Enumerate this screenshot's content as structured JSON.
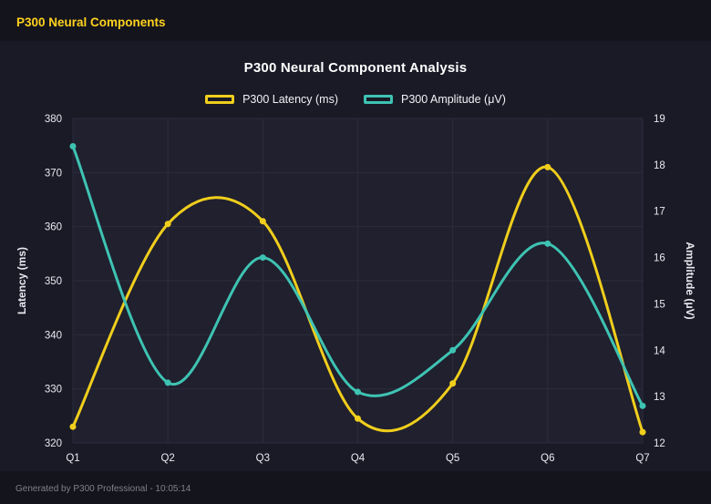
{
  "header": {
    "title": "P300 Neural Components"
  },
  "footer": {
    "text": "Generated by P300 Professional - 10:05:14"
  },
  "colors": {
    "accent": "#ffd21e",
    "latency_series": "#f0ce1c",
    "amplitude_series": "#3ec3b3",
    "background": "#14141d",
    "plot_background": "#20202e",
    "grid": "#2c2c3d"
  },
  "chart_data": {
    "type": "line",
    "title": "P300 Neural Component Analysis",
    "categories": [
      "Q1",
      "Q2",
      "Q3",
      "Q4",
      "Q5",
      "Q6",
      "Q7"
    ],
    "series": [
      {
        "name": "P300 Latency (ms)",
        "axis": "left",
        "color": "#f0ce1c",
        "values": [
          323,
          360.5,
          361,
          324.5,
          331,
          371,
          322
        ]
      },
      {
        "name": "P300 Amplitude (μV)",
        "axis": "right",
        "color": "#3ec3b3",
        "values": [
          18.4,
          13.3,
          16.0,
          13.1,
          14.0,
          16.3,
          12.8
        ]
      }
    ],
    "y_left": {
      "label": "Latency (ms)",
      "min": 320,
      "max": 380,
      "step": 10
    },
    "y_right": {
      "label": "Amplitude (μV)",
      "min": 12,
      "max": 19,
      "step": 1
    },
    "grid": true,
    "legend_position": "top",
    "curve": "smooth-spline"
  }
}
